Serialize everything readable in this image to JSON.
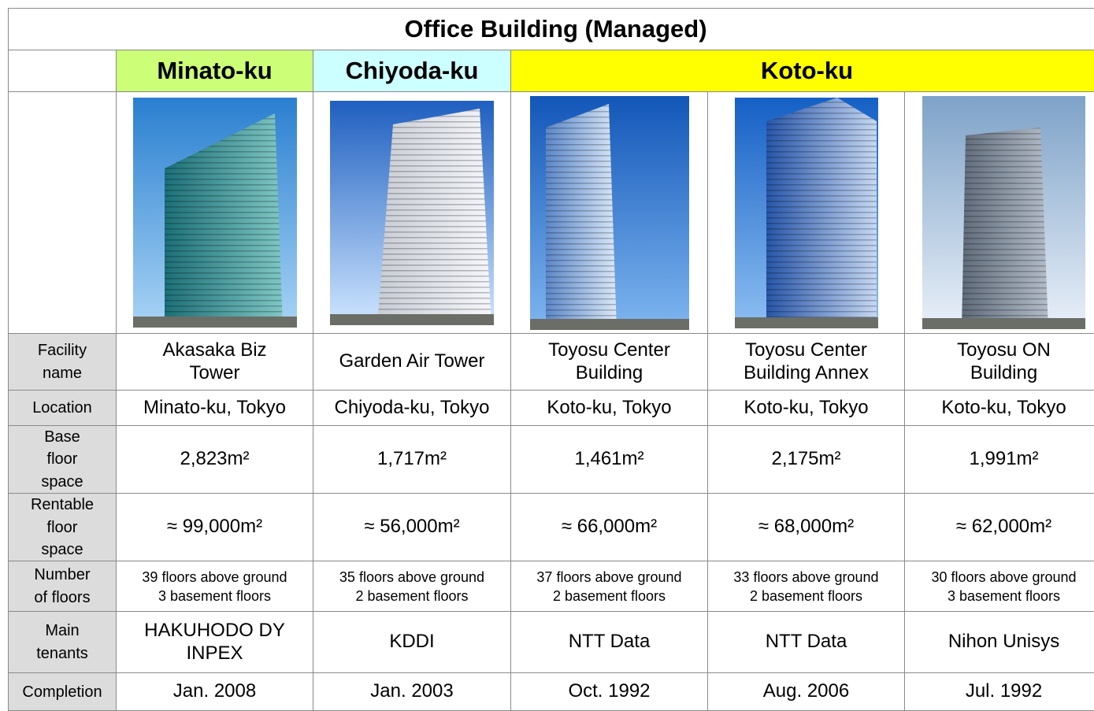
{
  "title": "Office Building (Managed)",
  "regions": [
    "Minato-ku",
    "Chiyoda-ku",
    "Koto-ku"
  ],
  "rows": [
    {
      "label": "Facility\nname",
      "cells": [
        "Akasaka Biz\nTower",
        "Garden Air Tower",
        "Toyosu Center\nBuilding",
        "Toyosu Center\nBuilding Annex",
        "Toyosu ON\nBuilding"
      ]
    },
    {
      "label": "Location",
      "cells": [
        "Minato-ku, Tokyo",
        "Chiyoda-ku, Tokyo",
        "Koto-ku, Tokyo",
        "Koto-ku, Tokyo",
        "Koto-ku, Tokyo"
      ]
    },
    {
      "label": "Base\nfloor\nspace",
      "cells": [
        "2,823m²",
        "1,717m²",
        "1,461m²",
        "2,175m²",
        "1,991m²"
      ]
    },
    {
      "label": "Rentable\nfloor\nspace",
      "cells": [
        "≈ 99,000m²",
        "≈ 56,000m²",
        "≈ 66,000m²",
        "≈ 68,000m²",
        "≈ 62,000m²"
      ]
    },
    {
      "label": "Number\nof floors",
      "cells": [
        "39 floors above ground\n3 basement floors",
        "35 floors above ground\n2 basement floors",
        "37 floors above ground\n2 basement floors",
        "33 floors above ground\n2 basement floors",
        "30 floors above ground\n3 basement floors"
      ]
    },
    {
      "label": "Main\ntenants",
      "cells": [
        "HAKUHODO DY\nINPEX",
        "KDDI",
        "NTT Data",
        "NTT Data",
        "Nihon Unisys"
      ]
    },
    {
      "label": "Completion",
      "cells": [
        "Jan. 2008",
        "Jan. 2003",
        "Oct. 1992",
        "Aug. 2006",
        "Jul. 1992"
      ]
    }
  ]
}
